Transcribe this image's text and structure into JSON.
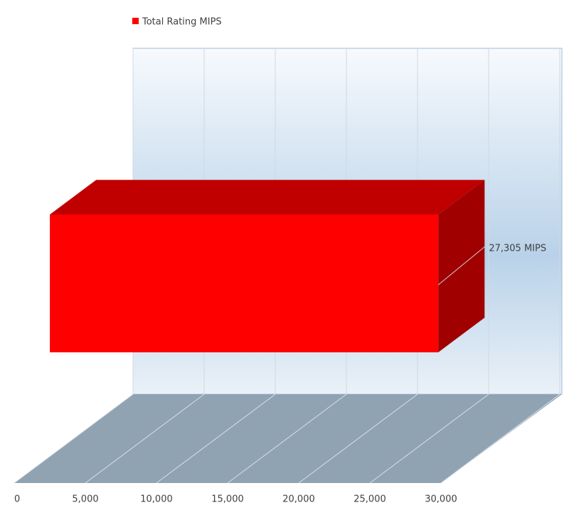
{
  "chart_data": {
    "type": "bar3d",
    "orientation": "horizontal",
    "categories": [
      null
    ],
    "series": [
      {
        "name": "Total Rating MIPS",
        "color": "#ff0000",
        "values": [
          27305
        ],
        "value_labels": [
          "27,305 MIPS"
        ]
      }
    ],
    "xlim": [
      0,
      30000
    ],
    "xticks": [
      0,
      {
        "value": 5000,
        "label": "5,000"
      },
      {
        "value": 10000,
        "label": "10,000"
      },
      {
        "value": 15000,
        "label": "15,000"
      },
      {
        "value": 20000,
        "label": "20,000"
      },
      {
        "value": 25000,
        "label": "25,000"
      },
      {
        "value": 30000,
        "label": "30,000"
      }
    ],
    "grid": true,
    "legend": "top"
  }
}
